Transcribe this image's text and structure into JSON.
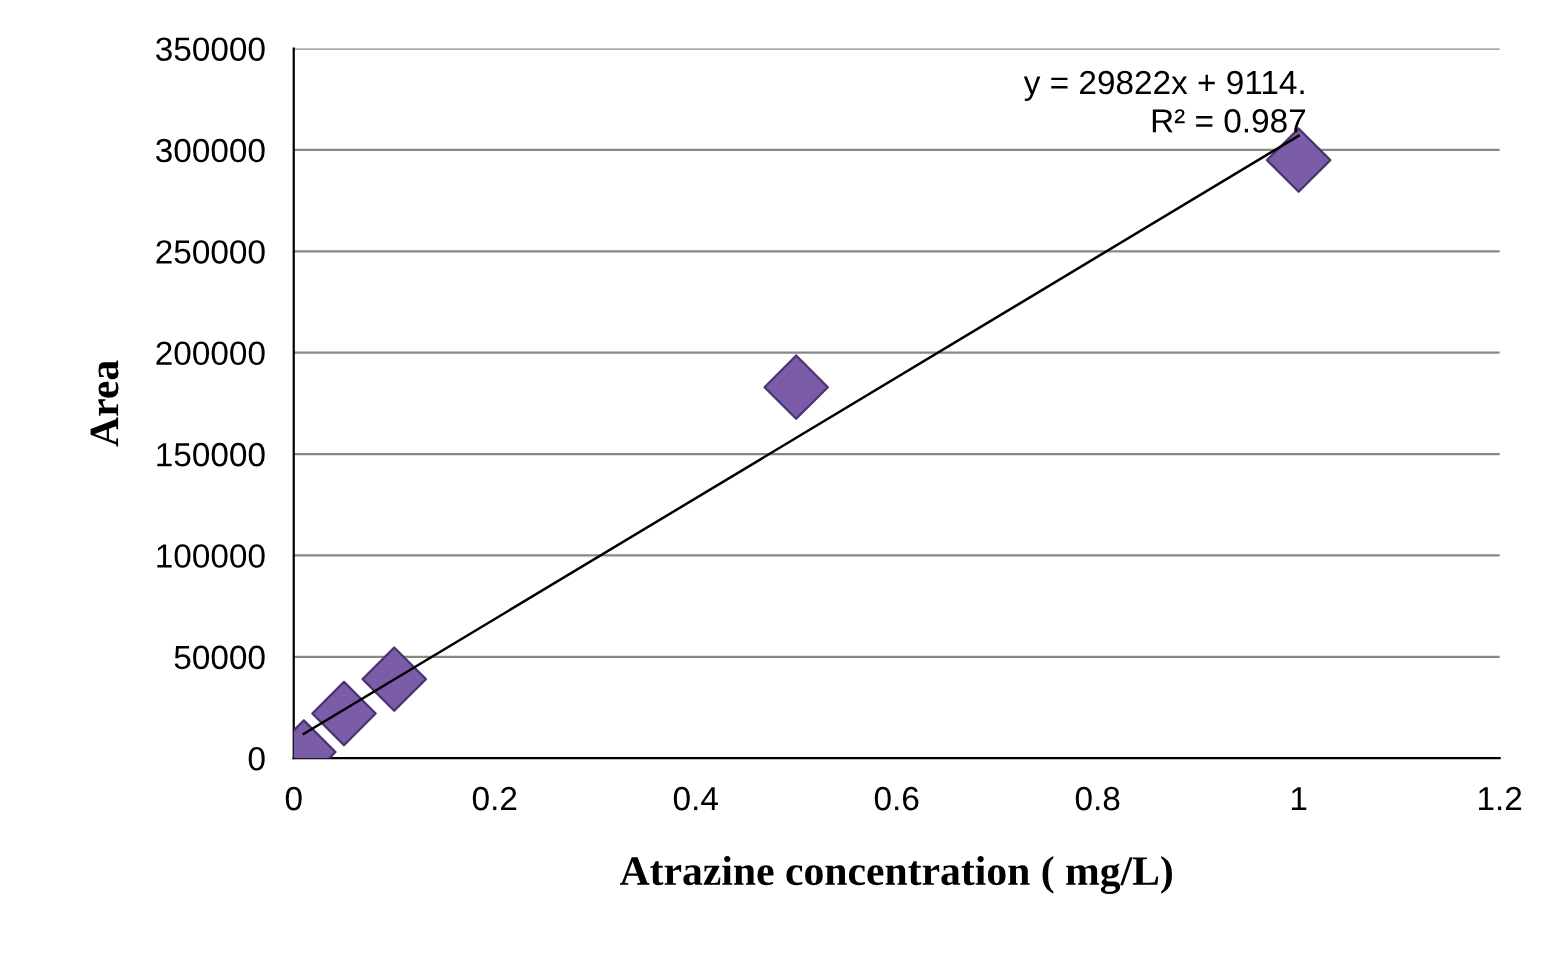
{
  "chart_data": {
    "type": "scatter",
    "xlabel": "Atrazine concentration ( mg/L)",
    "ylabel": "Area",
    "series": [
      {
        "color": "#7a5ca8",
        "marker": "diamond",
        "x": [
          0.01,
          0.05,
          0.1,
          0.5,
          1
        ],
        "values": [
          3000,
          22000,
          39000,
          183000,
          295000
        ]
      },
      {
        "type": "line",
        "color": "#000000",
        "marker": "none",
        "line_style": "solid",
        "x": [
          0.01,
          1
        ],
        "values": [
          12000,
          307000
        ]
      }
    ],
    "annotations": [
      "y = 29822x + 9114.\nR² = 0.987"
    ],
    "xlim": [
      0,
      1.2
    ],
    "xticks": [
      0,
      0.2,
      0.4,
      0.6,
      0.8,
      1,
      1.2
    ],
    "ylim": [
      0,
      350000
    ],
    "yticks": [
      0,
      50000,
      100000,
      150000,
      200000,
      250000,
      300000,
      350000
    ],
    "grid": "y",
    "legend": false
  }
}
